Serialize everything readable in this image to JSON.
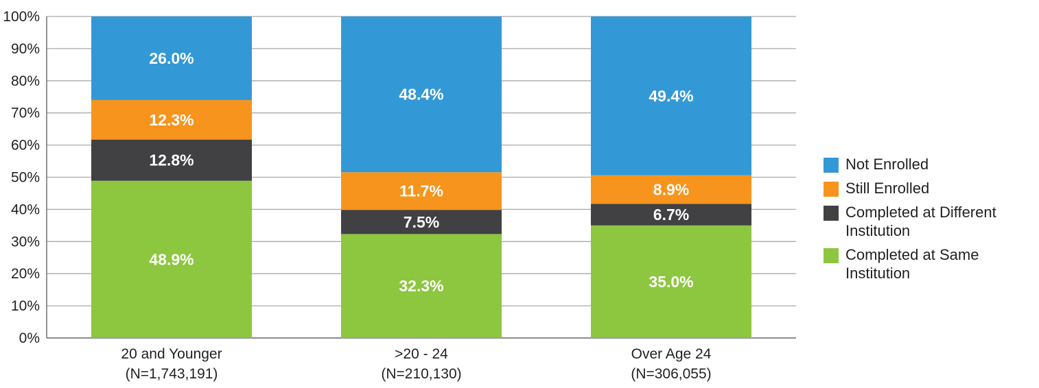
{
  "chart_data": {
    "type": "bar",
    "stacked": true,
    "categories": [
      "20 and Younger",
      ">20 - 24",
      "Over Age 24"
    ],
    "category_sublabels": [
      "(N=1,743,191)",
      "(N=210,130)",
      "(N=306,055)"
    ],
    "series": [
      {
        "name": "Completed at Same Institution",
        "color": "#8dc63f",
        "values": [
          48.9,
          32.3,
          35.0
        ],
        "labels": [
          "48.9%",
          "32.3%",
          "35.0%"
        ]
      },
      {
        "name": "Completed at Different Institution",
        "color": "#414042",
        "values": [
          12.8,
          7.5,
          6.7
        ],
        "labels": [
          "12.8%",
          "7.5%",
          "6.7%"
        ]
      },
      {
        "name": "Still Enrolled",
        "color": "#f7941d",
        "values": [
          12.3,
          11.7,
          8.9
        ],
        "labels": [
          "12.3%",
          "11.7%",
          "8.9%"
        ]
      },
      {
        "name": "Not Enrolled",
        "color": "#3399d6",
        "values": [
          26.0,
          48.4,
          49.4
        ],
        "labels": [
          "26.0%",
          "48.4%",
          "49.4%"
        ]
      }
    ],
    "ylim": [
      0,
      100
    ],
    "yticks": [
      "0%",
      "10%",
      "20%",
      "30%",
      "40%",
      "50%",
      "60%",
      "70%",
      "80%",
      "90%",
      "100%"
    ],
    "grid": true,
    "legend_position": "right",
    "legend_order": [
      "Not Enrolled",
      "Still Enrolled",
      "Completed at Different Institution",
      "Completed at Same Institution"
    ],
    "grid_color": "#a7a9ac",
    "text_color": "#231f20"
  }
}
